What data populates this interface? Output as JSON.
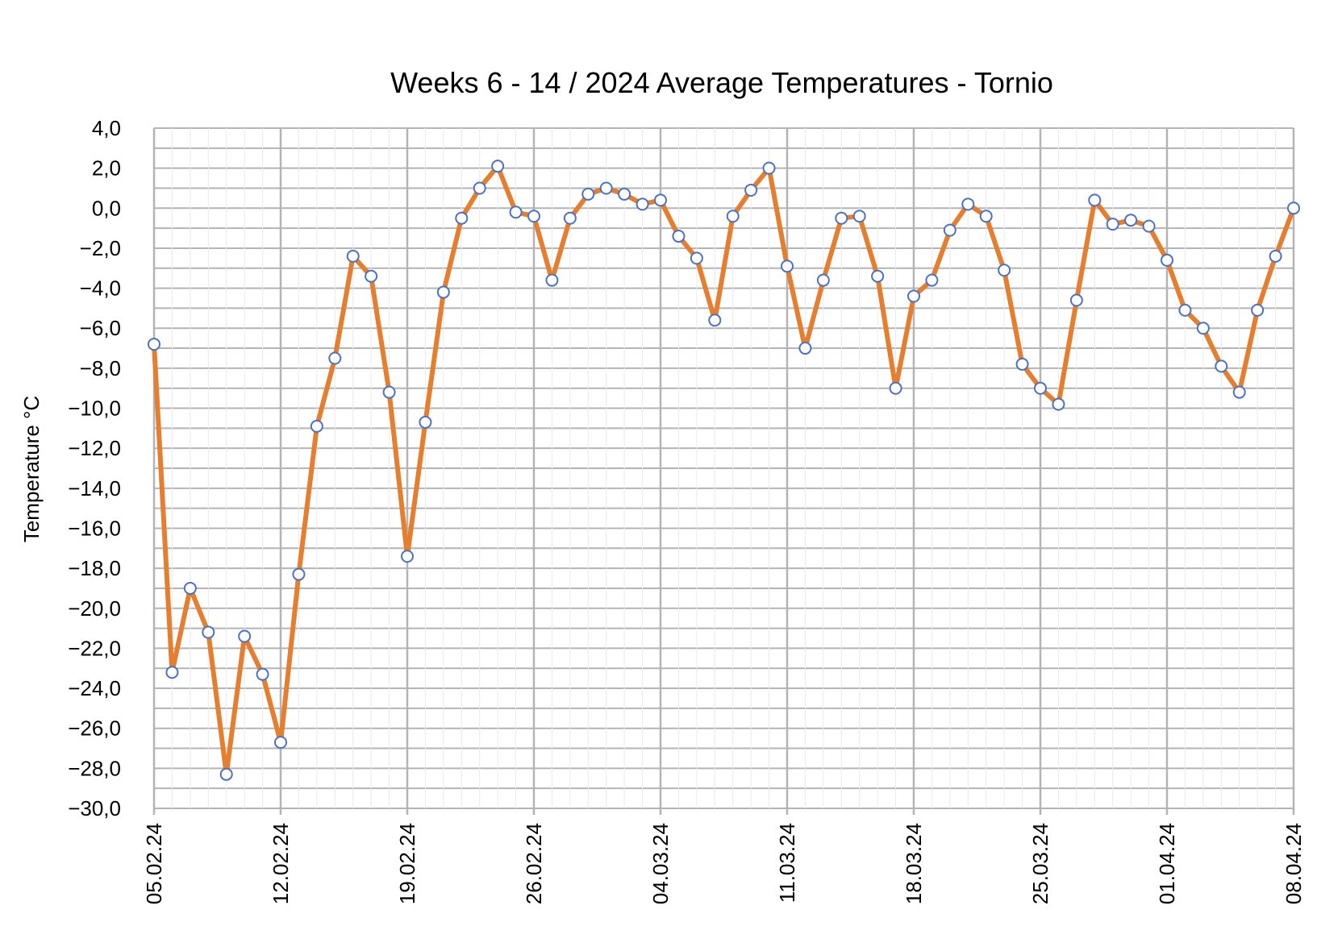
{
  "chart_data": {
    "type": "line",
    "title": "Weeks 6 - 14 / 2024  Average Temperatures  - Tornio",
    "xlabel": "",
    "ylabel": "Temperature  °C",
    "ylim": [
      -30,
      4
    ],
    "y_ticks": [
      "4,0",
      "2,0",
      "0,0",
      "−2,0",
      "−4,0",
      "−6,0",
      "−8,0",
      "−10,0",
      "−12,0",
      "−14,0",
      "−16,0",
      "−18,0",
      "−20,0",
      "−22,0",
      "−24,0",
      "−26,0",
      "−28,0",
      "−30,0"
    ],
    "x_ticks": [
      "05.02.24",
      "12.02.24",
      "19.02.24",
      "26.02.24",
      "04.03.24",
      "11.03.24",
      "18.03.24",
      "25.03.24",
      "01.04.24",
      "08.04.24"
    ],
    "grid": true,
    "legend": "none",
    "line_color": "#e57f2f",
    "marker_edge_color": "#4a72c4",
    "series": [
      {
        "x": [
          "05.02.24",
          "06.02.24",
          "07.02.24",
          "08.02.24",
          "09.02.24",
          "10.02.24",
          "11.02.24",
          "12.02.24",
          "13.02.24",
          "14.02.24",
          "15.02.24",
          "16.02.24",
          "17.02.24",
          "18.02.24",
          "19.02.24",
          "20.02.24",
          "21.02.24",
          "22.02.24",
          "23.02.24",
          "24.02.24",
          "25.02.24",
          "26.02.24",
          "27.02.24",
          "28.02.24",
          "29.02.24",
          "01.03.24",
          "02.03.24",
          "03.03.24",
          "04.03.24",
          "05.03.24",
          "06.03.24",
          "07.03.24",
          "08.03.24",
          "09.03.24",
          "10.03.24",
          "11.03.24",
          "12.03.24",
          "13.03.24",
          "14.03.24",
          "15.03.24",
          "16.03.24",
          "17.03.24",
          "18.03.24",
          "19.03.24",
          "20.03.24",
          "21.03.24",
          "22.03.24",
          "23.03.24",
          "24.03.24",
          "25.03.24",
          "26.03.24",
          "27.03.24",
          "28.03.24",
          "29.03.24",
          "30.03.24",
          "31.03.24",
          "01.04.24",
          "02.04.24",
          "03.04.24",
          "04.04.24",
          "05.04.24",
          "06.04.24",
          "07.04.24",
          "08.04.24"
        ],
        "values": [
          -6.8,
          -23.2,
          -19.0,
          -21.2,
          -28.3,
          -21.4,
          -23.3,
          -26.7,
          -18.3,
          -10.9,
          -7.5,
          -2.4,
          -3.4,
          -9.2,
          -17.4,
          -10.7,
          -4.2,
          -0.5,
          1.0,
          2.1,
          -0.2,
          -0.4,
          -3.6,
          -0.5,
          0.7,
          1.0,
          0.7,
          0.2,
          0.4,
          -1.4,
          -2.5,
          -5.6,
          -0.4,
          0.9,
          2.0,
          -2.9,
          -7.0,
          -3.6,
          -0.5,
          -0.4,
          -3.4,
          -9.0,
          -4.4,
          -3.6,
          -1.1,
          0.2,
          -0.4,
          -3.1,
          -7.8,
          -9.0,
          -9.8,
          -4.6,
          0.4,
          -0.8,
          -0.6,
          -0.9,
          -2.6,
          -5.1,
          -6.0,
          -7.9,
          -9.2,
          -5.1,
          -2.4,
          0.0
        ]
      }
    ]
  }
}
